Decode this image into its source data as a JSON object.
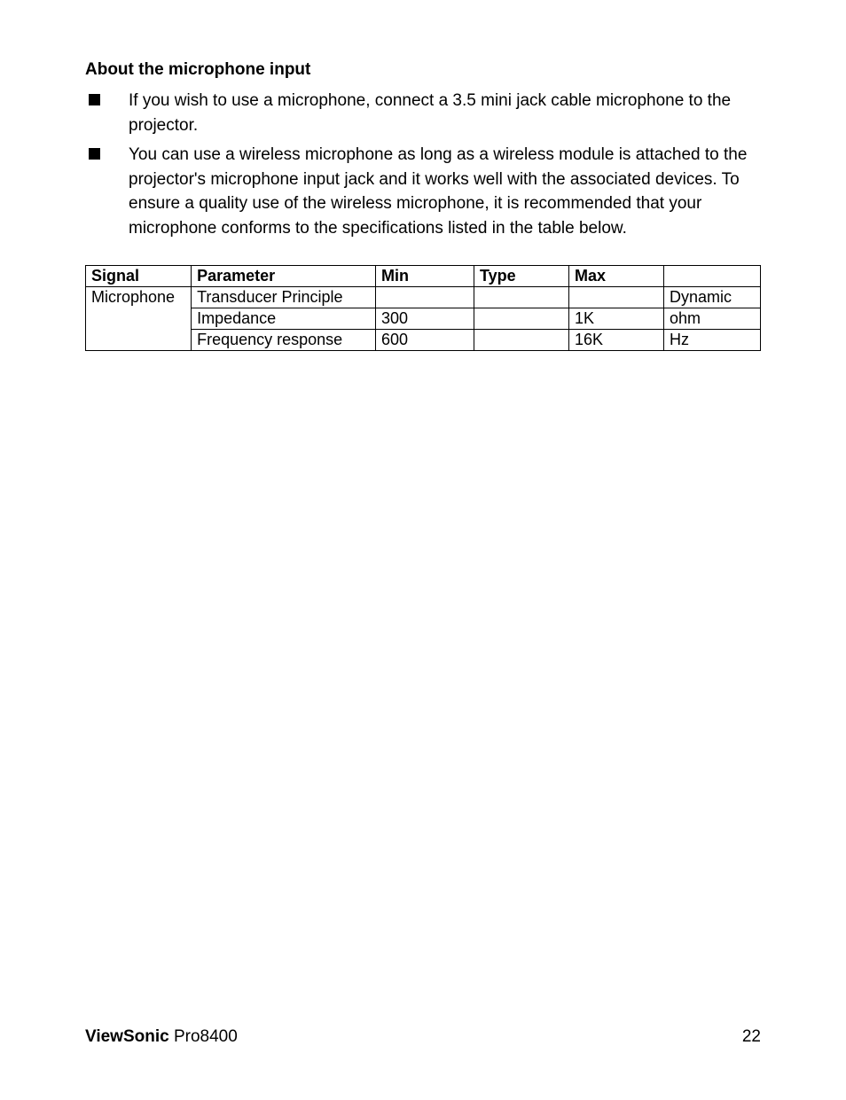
{
  "heading": "About the microphone input",
  "bullets": [
    "If you wish to use a microphone, connect a 3.5 mini jack cable microphone to the projector.",
    "You can use a wireless microphone as long as a wireless module is attached to the projector's microphone input jack and it works well with the associated devices. To ensure a quality use of the wireless microphone, it is recommended that your microphone conforms to the specifications listed in the table below."
  ],
  "table": {
    "columns": [
      "Signal",
      "Parameter",
      "Min",
      "Type",
      "Max",
      ""
    ],
    "signal_label": "Microphone",
    "rows": [
      {
        "parameter": "Transducer Principle",
        "min": "",
        "type": "",
        "max": "",
        "unit": "Dynamic"
      },
      {
        "parameter": "Impedance",
        "min": "300",
        "type": "",
        "max": "1K",
        "unit": "ohm"
      },
      {
        "parameter": "Frequency response",
        "min": "600",
        "type": "",
        "max": "16K",
        "unit": "Hz"
      }
    ]
  },
  "footer": {
    "brand": "ViewSonic",
    "model": "Pro8400",
    "page": "22"
  }
}
